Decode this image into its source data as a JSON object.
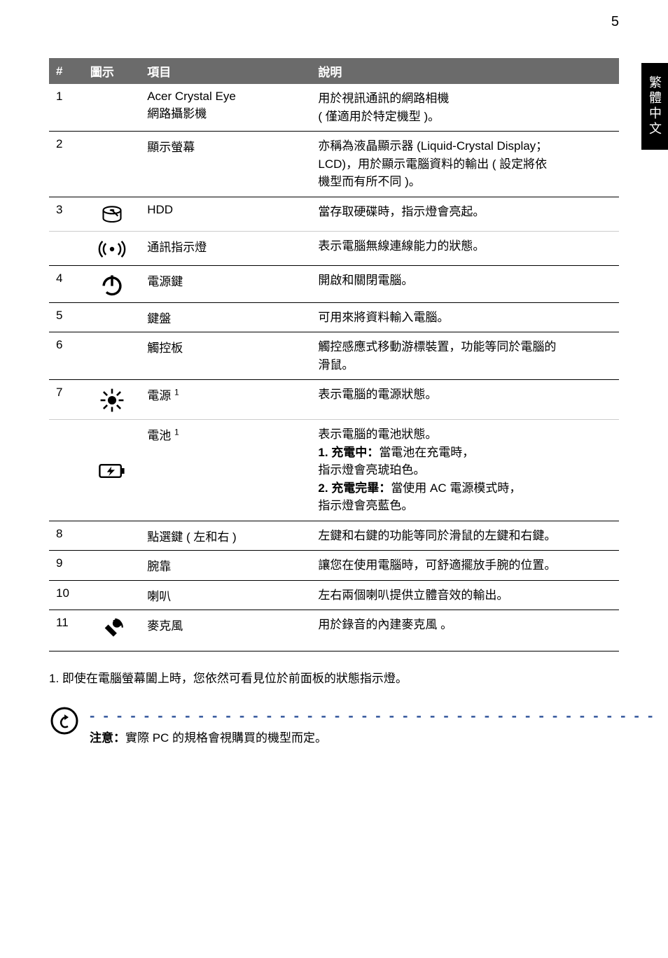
{
  "page_number": "5",
  "side_tab": "繁體中文",
  "header": {
    "num": "#",
    "icon": "圖示",
    "item": "項目",
    "desc": "說明"
  },
  "rows": [
    {
      "num": "1",
      "icon": null,
      "item": "Acer Crystal Eye\n網路攝影機",
      "desc": [
        "用於視訊通訊的網路相機",
        "( 僅適用於特定機型 )。"
      ]
    },
    {
      "num": "2",
      "icon": null,
      "item": "顯示螢幕",
      "desc": [
        "亦稱為液晶顯示器 (Liquid-Crystal Display；",
        "LCD)，用於顯示電腦資料的輸出 ( 設定將依",
        "機型而有所不同 )。"
      ]
    },
    {
      "num": "3",
      "icon": "hdd",
      "item": "HDD",
      "desc": [
        "當存取硬碟時，指示燈會亮起。"
      ],
      "noborder": true
    },
    {
      "num": "",
      "icon": "wifi",
      "item": "通訊指示燈",
      "desc": [
        "表示電腦無線連線能力的狀態。"
      ],
      "subborder": true
    },
    {
      "num": "4",
      "icon": "power",
      "item": "電源鍵",
      "desc": [
        "開啟和關閉電腦。"
      ]
    },
    {
      "num": "5",
      "icon": null,
      "item": "鍵盤",
      "desc": [
        "可用來將資料輸入電腦。"
      ]
    },
    {
      "num": "6",
      "icon": null,
      "item": "觸控板",
      "desc": [
        "觸控感應式移動游標裝置，功能等同於電腦的",
        "滑鼠。"
      ]
    },
    {
      "num": "7",
      "icon": "sun",
      "item_html": "電源 <span class='sup'>1</span>",
      "desc": [
        "表示電腦的電源狀態。"
      ],
      "noborder": true
    },
    {
      "num": "",
      "icon": "battery",
      "item_html": "電池 <span class='sup'>1</span>",
      "desc": [
        "表示電腦的電池狀態。",
        "<span class='bold'>1. 充電中：</span>當電池在充電時，",
        "指示燈會亮琥珀色。",
        "<span class='bold'>2. 充電完畢：</span>當使用 AC 電源模式時，",
        "指示燈會亮藍色。"
      ],
      "subborder": true
    },
    {
      "num": "8",
      "icon": null,
      "item": "點選鍵 ( 左和右 )",
      "desc": [
        "左鍵和右鍵的功能等同於滑鼠的左鍵和右鍵。"
      ]
    },
    {
      "num": "9",
      "icon": null,
      "item": "腕靠",
      "desc": [
        "讓您在使用電腦時，可舒適擺放手腕的位置。"
      ]
    },
    {
      "num": "10",
      "icon": null,
      "item": "喇叭",
      "desc": [
        "左右兩個喇叭提供立體音效的輸出。"
      ]
    },
    {
      "num": "11",
      "icon": "mic",
      "item": "麥克風",
      "desc": [
        "用於錄音的內建麥克風 。"
      ]
    }
  ],
  "footnote": "1. 即使在電腦螢幕闔上時，您依然可看見位於前面板的狀態指示燈。",
  "note_label": "注意：",
  "note_text": "實際 PC 的規格會視購買的機型而定。",
  "dashes": "- - - - - - - - - - - - - - - - - - - - - - - - - - - - - - - - - - - - - - - - - -"
}
